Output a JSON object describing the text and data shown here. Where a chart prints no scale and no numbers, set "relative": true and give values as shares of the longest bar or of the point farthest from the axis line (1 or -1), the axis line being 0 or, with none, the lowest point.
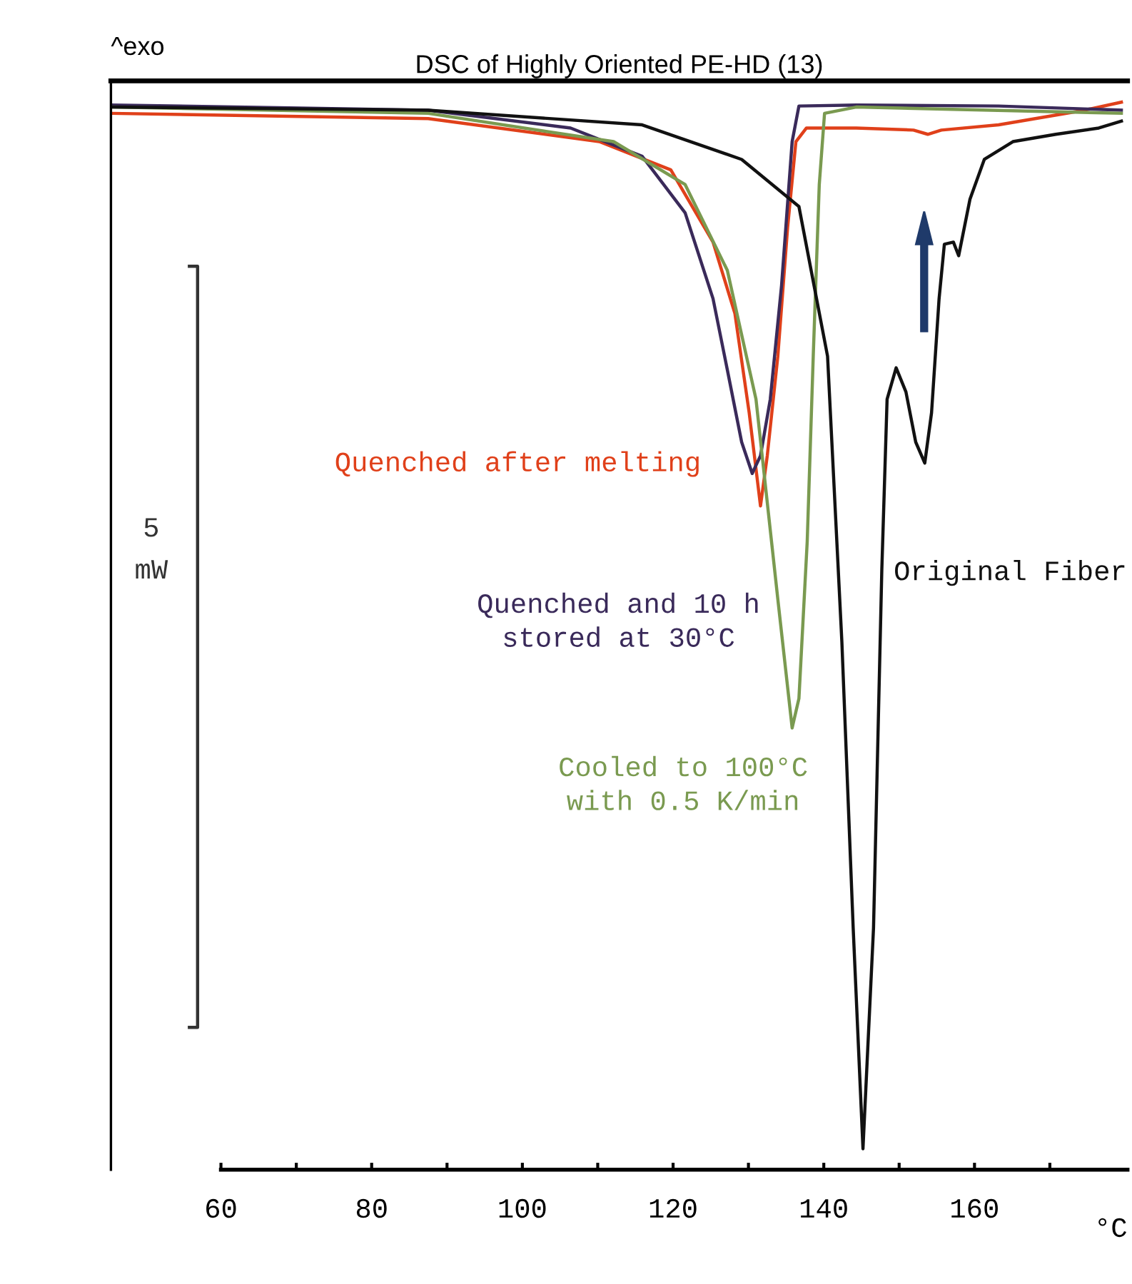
{
  "chart_data": {
    "type": "line",
    "title": "DSC of Highly Oriented PE-HD (13)",
    "xlabel": "°C",
    "relative": true,
    "xlim": [
      45.4,
      180.3
    ],
    "xticks": [
      60,
      {
        "value": 70,
        "label": null
      },
      80,
      {
        "value": 90,
        "label": null
      },
      100,
      {
        "value": 110,
        "label": null
      },
      120,
      {
        "value": 130,
        "label": null
      },
      140,
      {
        "value": 150,
        "label": null
      },
      160,
      {
        "value": 170,
        "label": null
      }
    ],
    "annotations": [
      "^exo"
    ],
    "series": [
      {
        "name": "Quenched after melting",
        "color": "#e0401a",
        "x": [
          45.4,
          87.5,
          110.2,
          119.7,
          125.3,
          128.2,
          130.1,
          131.6,
          132.5,
          133.9,
          135.2,
          136.3,
          137.7,
          144.3,
          151.9,
          153.8,
          155.6,
          163.2,
          174.6,
          179.7
        ],
        "values": [
          0.989,
          0.984,
          0.962,
          0.935,
          0.866,
          0.798,
          0.703,
          0.614,
          0.662,
          0.757,
          0.88,
          0.962,
          0.975,
          0.975,
          0.973,
          0.969,
          0.973,
          0.978,
          0.992,
          1
        ]
      },
      {
        "name": "Quenched and 10 h\nstored at 30°C",
        "color": "#3a2a5a",
        "x": [
          45.4,
          87.5,
          106.4,
          115.9,
          121.6,
          125.3,
          127.2,
          129.1,
          130.5,
          131.6,
          132.9,
          134.4,
          135.8,
          136.7,
          144.3,
          163.2,
          179.7
        ],
        "values": [
          0.997,
          0.992,
          0.975,
          0.948,
          0.894,
          0.812,
          0.744,
          0.675,
          0.645,
          0.662,
          0.716,
          0.825,
          0.962,
          0.996,
          0.997,
          0.996,
          0.992
        ]
      },
      {
        "name": "Cooled to 100°C\nwith 0.5 K/min",
        "color": "#7a9a50",
        "x": [
          45.4,
          87.5,
          112.1,
          121.6,
          127.2,
          131.0,
          133.9,
          135.8,
          136.7,
          137.8,
          138.6,
          139.4,
          140.1,
          144.3,
          179.7
        ],
        "values": [
          0.995,
          0.989,
          0.962,
          0.921,
          0.839,
          0.716,
          0.525,
          0.402,
          0.43,
          0.58,
          0.757,
          0.921,
          0.989,
          0.995,
          0.989
        ]
      },
      {
        "name": "5\nmW",
        "color": "#333333",
        "x": [
          55.6,
          56.9,
          56.9,
          55.6
        ],
        "values": [
          0.843,
          0.843,
          0.116,
          0.116
        ]
      },
      {
        "name": "Original Fiber",
        "color": "#111111",
        "x": [
          45.4,
          87.5,
          115.9,
          129.1,
          136.7,
          140.5,
          142.4,
          143.9,
          145.2,
          146.6,
          147.7,
          148.4,
          149.6,
          150.9,
          152.2,
          153.4,
          154.3,
          155.3,
          156.0,
          157.2,
          157.9,
          159.4,
          161.3,
          165.1,
          170.8,
          176.5,
          179.7
        ],
        "values": [
          0.995,
          0.992,
          0.978,
          0.945,
          0.9,
          0.757,
          0.484,
          0.211,
          0,
          0.211,
          0.553,
          0.716,
          0.746,
          0.723,
          0.675,
          0.655,
          0.703,
          0.812,
          0.864,
          0.866,
          0.853,
          0.907,
          0.945,
          0.962,
          0.969,
          0.975,
          0.982
        ]
      }
    ]
  }
}
